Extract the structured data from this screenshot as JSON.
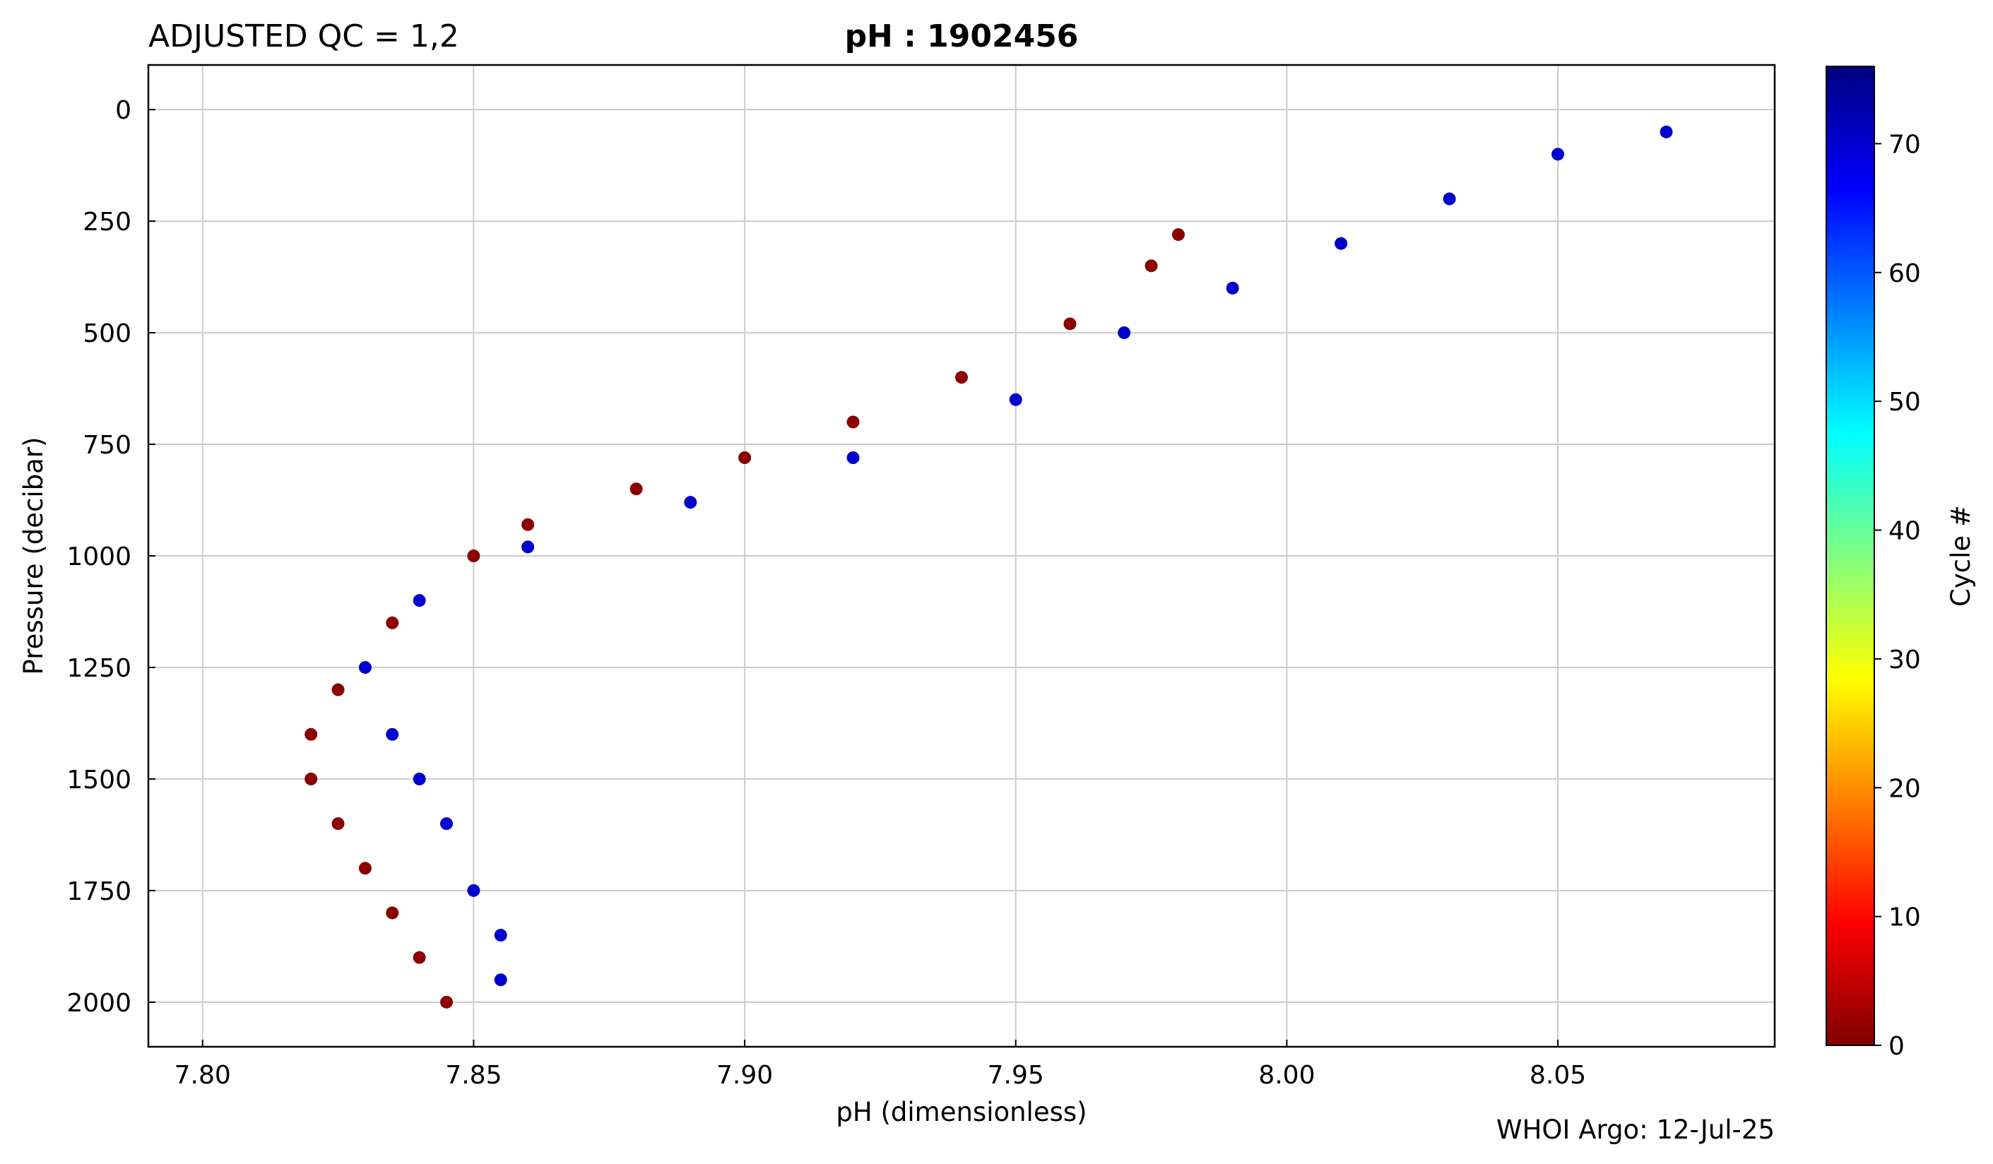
{
  "chart_data": {
    "type": "scatter",
    "title_left": "ADJUSTED QC = 1,2",
    "title_center": "pH : 1902456",
    "xlabel": "pH  (dimensionless)",
    "ylabel": "Pressure  (decibar)",
    "xlim": [
      7.79,
      8.09
    ],
    "ylim": [
      2100,
      -100
    ],
    "y_inverted": true,
    "xticks": [
      7.8,
      7.85,
      7.9,
      7.95,
      8.0,
      8.05
    ],
    "xtick_labels": [
      "7.80",
      "7.85",
      "7.90",
      "7.95",
      "8.00",
      "8.05"
    ],
    "yticks": [
      0,
      250,
      500,
      750,
      1000,
      1250,
      1500,
      1750,
      2000
    ],
    "ytick_labels": [
      "0",
      "250",
      "500",
      "750",
      "1000",
      "1250",
      "1500",
      "1750",
      "2000"
    ],
    "grid": true,
    "colorbar": {
      "label": "Cycle #",
      "colormap": "jet_reversed_bottom_darkred",
      "range": [
        0,
        76
      ],
      "ticks": [
        0,
        10,
        20,
        30,
        40,
        50,
        60,
        70
      ],
      "tick_labels": [
        "0",
        "10",
        "20",
        "30",
        "40",
        "50",
        "60",
        "70"
      ],
      "stops": [
        "#800000",
        "#ff0000",
        "#ff8000",
        "#ffff00",
        "#80ff80",
        "#00ffff",
        "#0080ff",
        "#0000ff",
        "#000080"
      ]
    },
    "credit": "WHOI Argo: 12-Jul-25",
    "series": [
      {
        "cycle_range": [
          0,
          3
        ],
        "color": "#8b0000",
        "description_points": "cycles 0-3 profile",
        "x": [
          7.98,
          7.975,
          7.96,
          7.94,
          7.92,
          7.9,
          7.88,
          7.86,
          7.85,
          7.835,
          7.825,
          7.82,
          7.82,
          7.825,
          7.83,
          7.835,
          7.84,
          7.845
        ],
        "y": [
          280,
          350,
          480,
          600,
          700,
          780,
          850,
          930,
          1000,
          1150,
          1300,
          1400,
          1500,
          1600,
          1700,
          1800,
          1900,
          2000
        ]
      },
      {
        "cycle_range": [
          60,
          76
        ],
        "color": "#0000cd",
        "description_points": "later cycles profile",
        "x": [
          8.07,
          8.05,
          8.03,
          8.01,
          7.99,
          7.97,
          7.95,
          7.92,
          7.89,
          7.86,
          7.84,
          7.83,
          7.835,
          7.84,
          7.845,
          7.85,
          7.855,
          7.855
        ],
        "y": [
          50,
          100,
          200,
          300,
          400,
          500,
          650,
          780,
          880,
          980,
          1100,
          1250,
          1400,
          1500,
          1600,
          1750,
          1850,
          1950
        ]
      }
    ]
  }
}
